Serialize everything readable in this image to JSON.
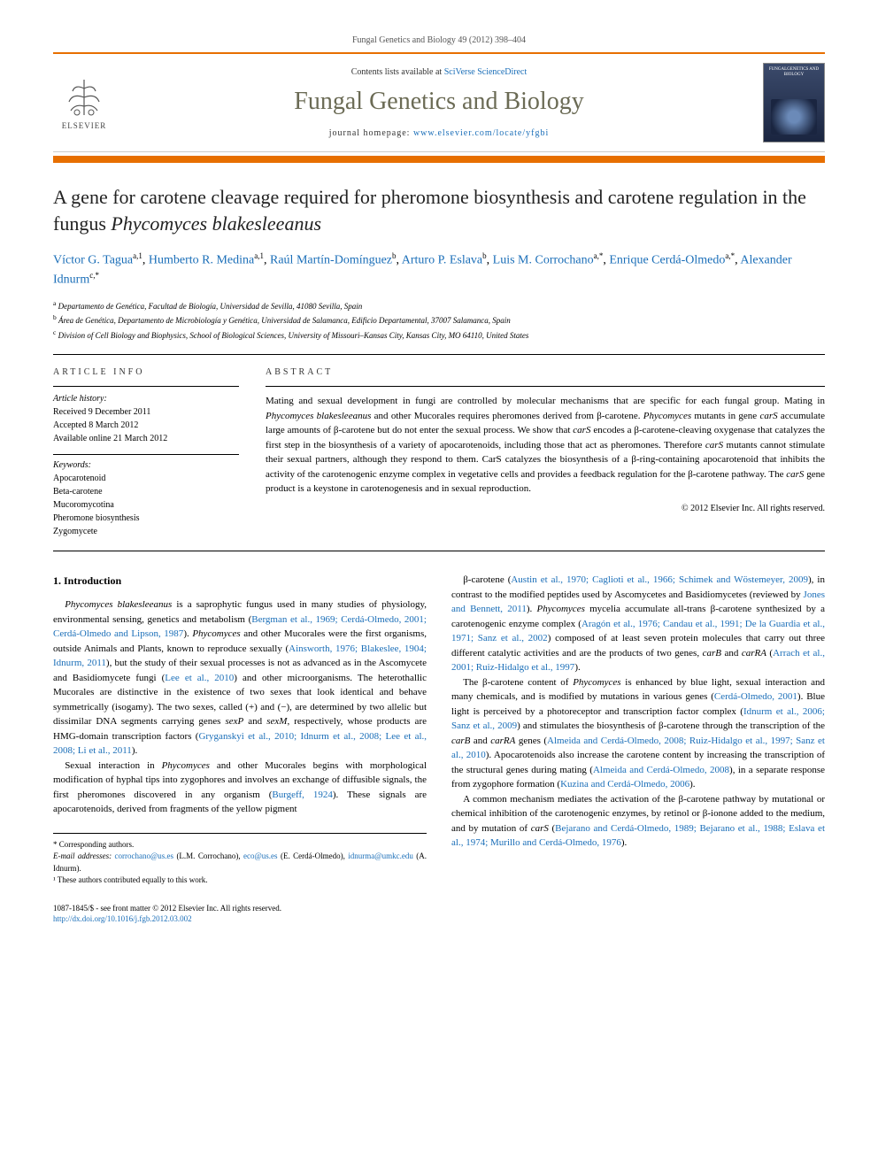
{
  "header": {
    "citation": "Fungal Genetics and Biology 49 (2012) 398–404",
    "contents_prefix": "Contents lists available at ",
    "contents_link": "SciVerse ScienceDirect",
    "journal_name": "Fungal Genetics and Biology",
    "homepage_prefix": "journal homepage: ",
    "homepage_url": "www.elsevier.com/locate/yfgbi",
    "elsevier_label": "ELSEVIER",
    "cover_title": "FUNGALGENETICS AND BIOLOGY"
  },
  "title_html": "A gene for carotene cleavage required for pheromone biosynthesis and carotene regulation in the fungus <em>Phycomyces blakesleeanus</em>",
  "authors_html": "<a href='#'>Víctor G. Tagua</a><sup>a,1</sup>, <a href='#'>Humberto R. Medina</a><sup>a,1</sup>, <a href='#'>Raúl Martín-Domínguez</a><sup>b</sup>, <a href='#'>Arturo P. Eslava</a><sup>b</sup>, <a href='#'>Luis M. Corrochano</a><sup>a,*</sup>, <a href='#'>Enrique Cerdá-Olmedo</a><sup>a,*</sup>, <a href='#'>Alexander Idnurm</a><sup>c,*</sup>",
  "affiliations": {
    "a": "Departamento de Genética, Facultad de Biología, Universidad de Sevilla, 41080 Sevilla, Spain",
    "b": "Área de Genética, Departamento de Microbiología y Genética, Universidad de Salamanca, Edificio Departamental, 37007 Salamanca, Spain",
    "c": "Division of Cell Biology and Biophysics, School of Biological Sciences, University of Missouri–Kansas City, Kansas City, MO 64110, United States"
  },
  "article_info": {
    "heading": "ARTICLE INFO",
    "history_head": "Article history:",
    "received": "Received 9 December 2011",
    "accepted": "Accepted 8 March 2012",
    "online": "Available online 21 March 2012",
    "keywords_head": "Keywords:",
    "keywords": [
      "Apocarotenoid",
      "Beta-carotene",
      "Mucoromycotina",
      "Pheromone biosynthesis",
      "Zygomycete"
    ]
  },
  "abstract": {
    "heading": "ABSTRACT",
    "text_html": "Mating and sexual development in fungi are controlled by molecular mechanisms that are specific for each fungal group. Mating in <em>Phycomyces blakesleeanus</em> and other Mucorales requires pheromones derived from β-carotene. <em>Phycomyces</em> mutants in gene <em>carS</em> accumulate large amounts of β-carotene but do not enter the sexual process. We show that <em>carS</em> encodes a β-carotene-cleaving oxygenase that catalyzes the first step in the biosynthesis of a variety of apocarotenoids, including those that act as pheromones. Therefore <em>carS</em> mutants cannot stimulate their sexual partners, although they respond to them. CarS catalyzes the biosynthesis of a β-ring-containing apocarotenoid that inhibits the activity of the carotenogenic enzyme complex in vegetative cells and provides a feedback regulation for the β-carotene pathway. The <em>carS</em> gene product is a keystone in carotenogenesis and in sexual reproduction.",
    "copyright": "© 2012 Elsevier Inc. All rights reserved."
  },
  "body": {
    "section_number": "1.",
    "section_title": "Introduction",
    "col1_p1_html": "<em>Phycomyces blakesleeanus</em> is a saprophytic fungus used in many studies of physiology, environmental sensing, genetics and metabolism (<a href='#'>Bergman et al., 1969; Cerdá-Olmedo, 2001; Cerdá-Olmedo and Lipson, 1987</a>). <em>Phycomyces</em> and other Mucorales were the first organisms, outside Animals and Plants, known to reproduce sexually (<a href='#'>Ainsworth, 1976; Blakeslee, 1904; Idnurm, 2011</a>), but the study of their sexual processes is not as advanced as in the Ascomycete and Basidiomycete fungi (<a href='#'>Lee et al., 2010</a>) and other microorganisms. The heterothallic Mucorales are distinctive in the existence of two sexes that look identical and behave symmetrically (isogamy). The two sexes, called (+) and (−), are determined by two allelic but dissimilar DNA segments carrying genes <em>sexP</em> and <em>sexM</em>, respectively, whose products are HMG-domain transcription factors (<a href='#'>Gryganskyi et al., 2010; Idnurm et al., 2008; Lee et al., 2008; Li et al., 2011</a>).",
    "col1_p2_html": "Sexual interaction in <em>Phycomyces</em> and other Mucorales begins with morphological modification of hyphal tips into zygophores and involves an exchange of diffusible signals, the first pheromones discovered in any organism (<a href='#'>Burgeff, 1924</a>). These signals are apocarotenoids, derived from fragments of the yellow pigment",
    "col2_p1_html": "β-carotene (<a href='#'>Austin et al., 1970; Caglioti et al., 1966; Schimek and Wöstemeyer, 2009</a>), in contrast to the modified peptides used by Ascomycetes and Basidiomycetes (reviewed by <a href='#'>Jones and Bennett, 2011</a>). <em>Phycomyces</em> mycelia accumulate all-trans β-carotene synthesized by a carotenogenic enzyme complex (<a href='#'>Aragón et al., 1976; Candau et al., 1991; De la Guardia et al., 1971; Sanz et al., 2002</a>) composed of at least seven protein molecules that carry out three different catalytic activities and are the products of two genes, <em>carB</em> and <em>carRA</em> (<a href='#'>Arrach et al., 2001; Ruiz-Hidalgo et al., 1997</a>).",
    "col2_p2_html": "The β-carotene content of <em>Phycomyces</em> is enhanced by blue light, sexual interaction and many chemicals, and is modified by mutations in various genes (<a href='#'>Cerdá-Olmedo, 2001</a>). Blue light is perceived by a photoreceptor and transcription factor complex (<a href='#'>Idnurm et al., 2006; Sanz et al., 2009</a>) and stimulates the biosynthesis of β-carotene through the transcription of the <em>carB</em> and <em>carRA</em> genes (<a href='#'>Almeida and Cerdá-Olmedo, 2008; Ruiz-Hidalgo et al., 1997; Sanz et al., 2010</a>). Apocarotenoids also increase the carotene content by increasing the transcription of the structural genes during mating (<a href='#'>Almeida and Cerdá-Olmedo, 2008</a>), in a separate response from zygophore formation (<a href='#'>Kuzina and Cerdá-Olmedo, 2006</a>).",
    "col2_p3_html": "A common mechanism mediates the activation of the β-carotene pathway by mutational or chemical inhibition of the carotenogenic enzymes, by retinol or β-ionone added to the medium, and by mutation of <em>carS</em> (<a href='#'>Bejarano and Cerdá-Olmedo, 1989; Bejarano et al., 1988; Eslava et al., 1974; Murillo and Cerdá-Olmedo, 1976</a>)."
  },
  "footnotes": {
    "corr": "* Corresponding authors.",
    "emails_label": "E-mail addresses:",
    "email1": "corrochano@us.es",
    "email1_person": "(L.M. Corrochano),",
    "email2": "eco@us.es",
    "email2_person": "(E. Cerdá-Olmedo),",
    "email3": "idnurma@umkc.edu",
    "email3_person": "(A. Idnurm).",
    "contrib": "¹ These authors contributed equally to this work."
  },
  "footer": {
    "issn": "1087-1845/$ - see front matter © 2012 Elsevier Inc. All rights reserved.",
    "doi": "http://dx.doi.org/10.1016/j.fgb.2012.03.002"
  },
  "colors": {
    "accent": "#e76f00",
    "link": "#1a6eb8",
    "journal_name": "#6b6b55"
  }
}
